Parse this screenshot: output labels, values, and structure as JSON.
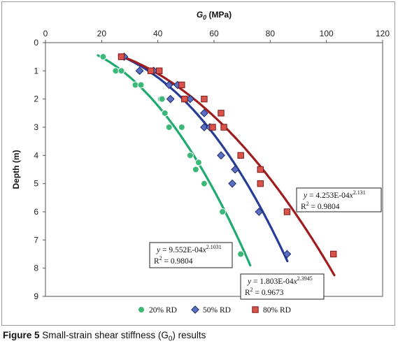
{
  "chart_data": {
    "type": "scatter",
    "title": "",
    "xlabel": "G",
    "xlabel_sub": "0",
    "xlabel_unit": " (MPa)",
    "ylabel": "Depth (m)",
    "xlim": [
      0,
      120
    ],
    "ylim": [
      0,
      9
    ],
    "y_inverted": true,
    "x_axis_position": "top",
    "xticks": [
      "0",
      "20",
      "40",
      "60",
      "80",
      "100",
      "120"
    ],
    "yticks": [
      "0",
      "1",
      "2",
      "3",
      "4",
      "5",
      "6",
      "7",
      "8",
      "9"
    ],
    "grid": false,
    "legend_position": "bottom",
    "series": [
      {
        "name": "20% RD",
        "marker": "circle",
        "color": "#3cb878",
        "line_color": "#1faa6f",
        "points": [
          [
            20.5,
            0.5
          ],
          [
            25,
            1.0
          ],
          [
            27,
            1.0
          ],
          [
            32,
            1.5
          ],
          [
            34,
            1.5
          ],
          [
            41,
            2.0
          ],
          [
            41.5,
            2.0
          ],
          [
            42.5,
            2.5
          ],
          [
            44,
            3.0
          ],
          [
            48.5,
            3.0
          ],
          [
            51.5,
            4.0
          ],
          [
            54.5,
            4.25
          ],
          [
            53.5,
            4.5
          ],
          [
            56.5,
            5.0
          ],
          [
            63,
            6.0
          ],
          [
            69.5,
            7.5
          ]
        ],
        "fit": {
          "a": 0.0009552,
          "b": 2.1031,
          "eq": "y = 9.552E-04x",
          "exp": "2.1031",
          "r2": "R",
          "r2_exp": "2",
          "r2_val": " = 0.9804",
          "depth_range": [
            0.45,
            7.9
          ]
        }
      },
      {
        "name": "50% RD",
        "marker": "diamond",
        "color": "#5b6fc4",
        "line_color": "#263c97",
        "points": [
          [
            28,
            0.5
          ],
          [
            33.5,
            1.0
          ],
          [
            38.5,
            1.0
          ],
          [
            44,
            1.5
          ],
          [
            47,
            1.5
          ],
          [
            44.5,
            2.0
          ],
          [
            51.5,
            2.0
          ],
          [
            56.5,
            2.5
          ],
          [
            56.5,
            3.0
          ],
          [
            58.5,
            3.0
          ],
          [
            62.5,
            4.0
          ],
          [
            67.5,
            4.5
          ],
          [
            66.5,
            5.0
          ],
          [
            76,
            6.0
          ],
          [
            86,
            7.5
          ]
        ],
        "fit": {
          "a": 0.0001803,
          "b": 2.3945,
          "eq": "y = 1.803E-04x",
          "exp": "2.3945",
          "r2": "R",
          "r2_exp": "2",
          "r2_val": " = 0.9673",
          "depth_range": [
            0.45,
            7.75
          ]
        }
      },
      {
        "name": "80% RD",
        "marker": "square",
        "color": "#d9534a",
        "line_color": "#a01c1c",
        "points": [
          [
            27,
            0.5
          ],
          [
            37.5,
            1.0
          ],
          [
            40.5,
            1.0
          ],
          [
            48.5,
            1.5
          ],
          [
            49.5,
            2.0
          ],
          [
            56.5,
            2.0
          ],
          [
            59.5,
            3.0
          ],
          [
            62.5,
            2.5
          ],
          [
            63.5,
            3.0
          ],
          [
            69.5,
            4.0
          ],
          [
            76.5,
            4.5
          ],
          [
            76.5,
            5.0
          ],
          [
            86,
            6.0
          ],
          [
            102.5,
            7.5
          ]
        ],
        "fit": {
          "a": 0.0004253,
          "b": 2.131,
          "eq": "y = 4.253E-04x",
          "exp": "2.131",
          "r2": "R",
          "r2_exp": "2",
          "r2_val": " = 0.9804",
          "depth_range": [
            0.45,
            8.25
          ]
        }
      }
    ]
  },
  "caption": {
    "figure_label": "Figure 5",
    "text_before": " Small-strain shear stiffness (G",
    "text_sub": "0",
    "text_after": ") results"
  }
}
